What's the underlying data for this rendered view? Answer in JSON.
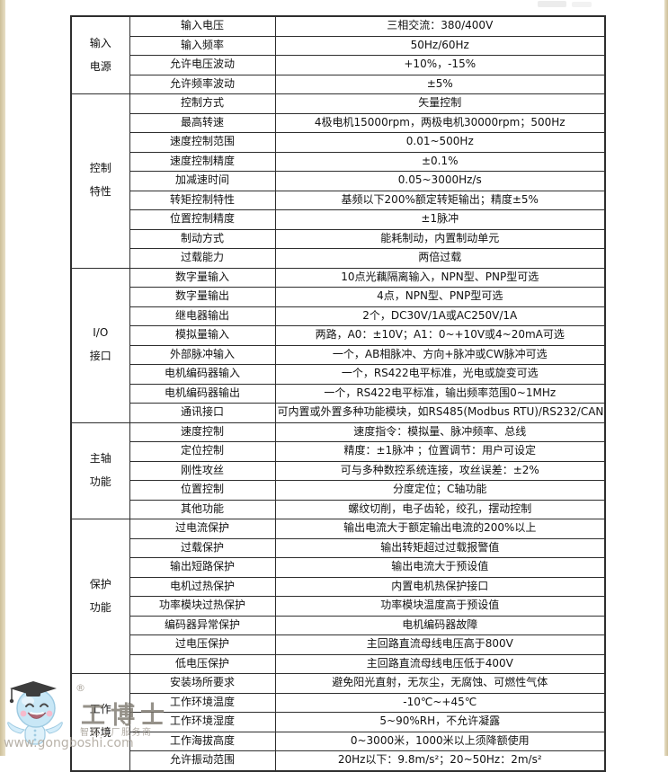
{
  "page": {
    "background_color": "#ffffff",
    "edge_strip_color": "#d6c9a4",
    "table_border_color": "#2e2e2e"
  },
  "table": {
    "sections": [
      {
        "category": "输入电源",
        "category_lines": [
          "输入",
          "电源"
        ],
        "rows": [
          {
            "item": "输入电压",
            "value": "三相交流：380/400V"
          },
          {
            "item": "输入频率",
            "value": "50Hz/60Hz"
          },
          {
            "item": "允许电压波动",
            "value": "+10%，-15%"
          },
          {
            "item": "允许频率波动",
            "value": "±5%"
          }
        ]
      },
      {
        "category": "控制特性",
        "category_lines": [
          "控制",
          "特性"
        ],
        "rows": [
          {
            "item": "控制方式",
            "value": "矢量控制"
          },
          {
            "item": "最高转速",
            "value": "4极电机15000rpm，两极电机30000rpm；500Hz"
          },
          {
            "item": "速度控制范围",
            "value": "0.01~500Hz"
          },
          {
            "item": "速度控制精度",
            "value": "±0.1%"
          },
          {
            "item": "加减速时间",
            "value": "0.05~3000Hz/s"
          },
          {
            "item": "转矩控制特性",
            "value": "基频以下200%额定转矩输出；精度±5%"
          },
          {
            "item": "位置控制精度",
            "value": "±1脉冲"
          },
          {
            "item": "制动方式",
            "value": "能耗制动，内置制动单元"
          },
          {
            "item": "过载能力",
            "value": "两倍过载"
          }
        ]
      },
      {
        "category": "I/O接口",
        "category_lines": [
          "I/O",
          "接口"
        ],
        "rows": [
          {
            "item": "数字量输入",
            "value": "10点光藕隔离输入，NPN型、PNP型可选"
          },
          {
            "item": "数字量输出",
            "value": "4点，NPN型、PNP型可选"
          },
          {
            "item": "继电器输出",
            "value": "2个，DC30V/1A或AC250V/1A"
          },
          {
            "item": "模拟量输入",
            "value": "两路，A0：±10V；A1：0~+10V或4~20mA可选"
          },
          {
            "item": "外部脉冲输入",
            "value": "一个，AB相脉冲、方向+脉冲或CW脉冲可选"
          },
          {
            "item": "电机编码器输入",
            "value": "一个，RS422电平标准，光电或旋变可选"
          },
          {
            "item": "电机编码器输出",
            "value": "一个，RS422电平标准，输出频率范围0~1MHz"
          },
          {
            "item": "通讯接口",
            "value": "可内置或外置多种功能模块，如RS485(Modbus RTU)/RS232/CAN等"
          }
        ]
      },
      {
        "category": "主轴功能",
        "category_lines": [
          "主轴",
          "功能"
        ],
        "rows": [
          {
            "item": "速度控制",
            "value": "速度指令：模拟量、脉冲频率、总线"
          },
          {
            "item": "定位控制",
            "value": "精度：±1脉冲 ；位置调节：用户可设定"
          },
          {
            "item": "刚性攻丝",
            "value": "可与多种数控系统连接，攻丝误差：±2%"
          },
          {
            "item": "位置控制",
            "value": "分度定位；C轴功能"
          },
          {
            "item": "其他功能",
            "value": "螺纹切削，电子齿轮，绞孔，摆动控制"
          }
        ]
      },
      {
        "category": "保护功能",
        "category_lines": [
          "保护",
          "功能"
        ],
        "rows": [
          {
            "item": "过电流保护",
            "value": "输出电流大于额定输出电流的200%以上"
          },
          {
            "item": "过载保护",
            "value": "输出转矩超过过载报警值"
          },
          {
            "item": "输出短路保护",
            "value": "输出电流大于预设值"
          },
          {
            "item": "电机过热保护",
            "value": "内置电机热保护接口"
          },
          {
            "item": "功率模块过热保护",
            "value": "功率模块温度高于预设值"
          },
          {
            "item": "编码器异常保护",
            "value": "电机编码器故障"
          },
          {
            "item": "过电压保护",
            "value": "主回路直流母线电压高于800V"
          },
          {
            "item": "低电压保护",
            "value": "主回路直流母线电压低于400V"
          }
        ]
      },
      {
        "category": "工作环境",
        "category_lines": [
          "工作",
          "环境"
        ],
        "rows": [
          {
            "item": "安装场所要求",
            "value": "避免阳光直射，无灰尘，无腐蚀、可燃性气体"
          },
          {
            "item": "工作环境温度",
            "value": "-10℃~+45℃"
          },
          {
            "item": "工作环境湿度",
            "value": "5~90%RH，不允许凝露"
          },
          {
            "item": "工作海拔高度",
            "value": "0~3000米，1000米以上须降额使用"
          },
          {
            "item": "允许振动范围",
            "value": "20Hz以下：9.8m/s²；20~50Hz：2m/s²"
          }
        ]
      }
    ]
  },
  "watermark": {
    "brand": "工博士",
    "registered": "®",
    "tagline": "智能工厂服务商",
    "website": "www.gongboshi.com",
    "brand_color": "#7a756b",
    "mascot_body_color": "#bfe3f5",
    "mascot_cap_color": "#1c1c1c",
    "mascot_cheek_color": "#f5afc4"
  }
}
